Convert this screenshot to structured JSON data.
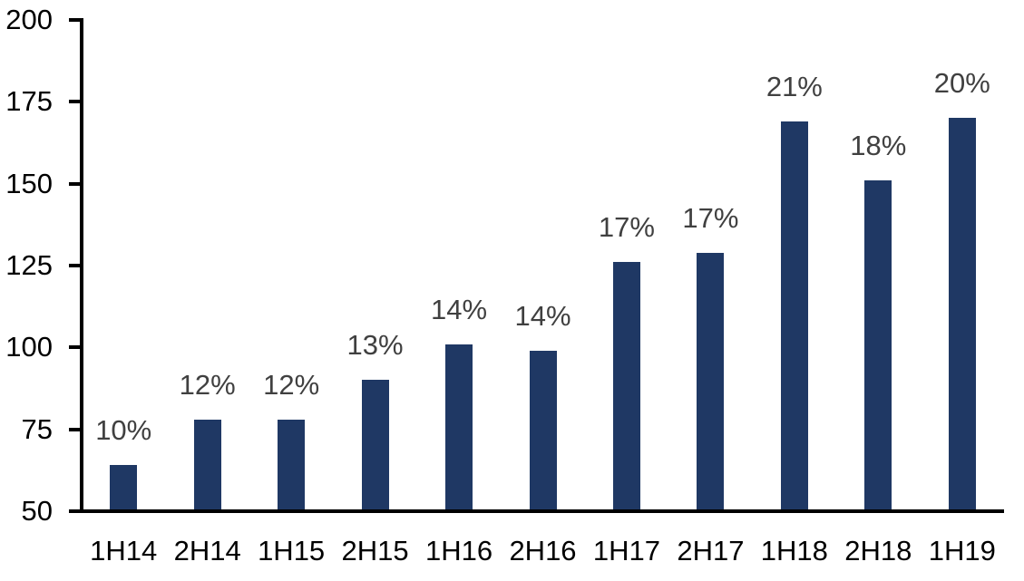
{
  "chart_data": {
    "type": "bar",
    "title": "",
    "xlabel": "",
    "ylabel": "",
    "categories": [
      "1H14",
      "2H14",
      "1H15",
      "2H15",
      "1H16",
      "2H16",
      "1H17",
      "2H17",
      "1H18",
      "2H18",
      "1H19"
    ],
    "values": [
      64,
      78,
      78,
      90,
      101,
      99,
      126,
      129,
      169,
      151,
      170
    ],
    "data_labels": [
      "10%",
      "12%",
      "12%",
      "13%",
      "14%",
      "14%",
      "17%",
      "17%",
      "21%",
      "18%",
      "20%"
    ],
    "y_ticks": [
      50,
      75,
      100,
      125,
      150,
      175,
      200
    ],
    "ylim": [
      50,
      200
    ],
    "grid": false,
    "legend": false,
    "colors": {
      "bar": "#1F3864",
      "data_label": "#404040",
      "axis": "#000000",
      "tick_label": "#000000",
      "background": "#FFFFFF"
    }
  }
}
